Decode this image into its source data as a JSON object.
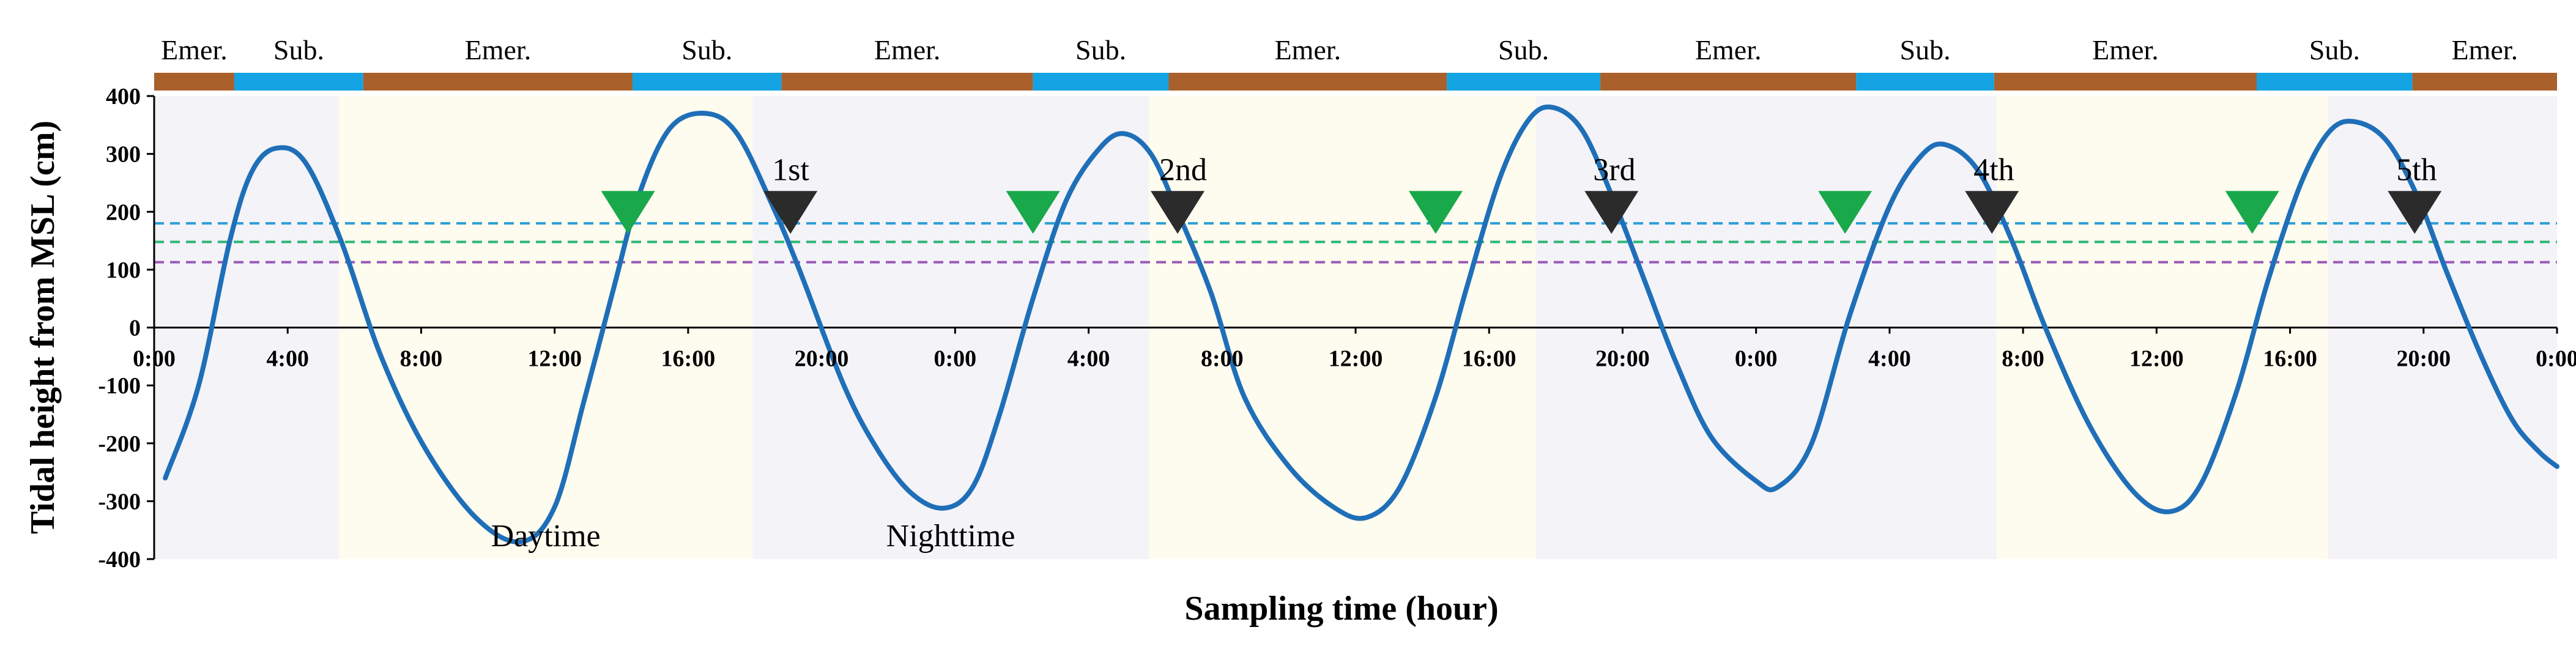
{
  "chart_data": {
    "type": "line",
    "title": "",
    "xlabel": "Sampling time (hour)",
    "ylabel": "Tidal height from MSL (cm)",
    "x_unit": "hour",
    "xlim": [
      0,
      108
    ],
    "ylim": [
      -400,
      400
    ],
    "yticks": [
      {
        "value": 400,
        "label": "400"
      },
      {
        "value": 300,
        "label": "300"
      },
      {
        "value": 200,
        "label": "200"
      },
      {
        "value": 100,
        "label": "100"
      },
      {
        "value": 0,
        "label": "0"
      },
      {
        "value": -100,
        "label": "-100"
      },
      {
        "value": -200,
        "label": "-200"
      },
      {
        "value": -300,
        "label": "-300"
      },
      {
        "value": -400,
        "label": "-400"
      }
    ],
    "xticks": [
      {
        "value": 0,
        "label": "0:00"
      },
      {
        "value": 6,
        "label": "4:00"
      },
      {
        "value": 12,
        "label": "8:00"
      },
      {
        "value": 18,
        "label": "12:00"
      },
      {
        "value": 24,
        "label": "16:00"
      },
      {
        "value": 30,
        "label": "20:00"
      },
      {
        "value": 36,
        "label": "0:00"
      },
      {
        "value": 42,
        "label": "4:00"
      },
      {
        "value": 48,
        "label": "8:00"
      },
      {
        "value": 54,
        "label": "12:00"
      },
      {
        "value": 60,
        "label": "16:00"
      },
      {
        "value": 66,
        "label": "20:00"
      },
      {
        "value": 72,
        "label": "0:00"
      },
      {
        "value": 78,
        "label": "4:00"
      },
      {
        "value": 84,
        "label": "8:00"
      },
      {
        "value": 90,
        "label": "12:00"
      },
      {
        "value": 96,
        "label": "16:00"
      },
      {
        "value": 102,
        "label": "20:00"
      },
      {
        "value": 108,
        "label": "0:00"
      }
    ],
    "series": [
      {
        "name": "",
        "color": "#1f6fb8",
        "points": [
          [
            0.5,
            -260
          ],
          [
            2.0,
            -100
          ],
          [
            3.4,
            150
          ],
          [
            4.4,
            270
          ],
          [
            5.5,
            310
          ],
          [
            6.8,
            285
          ],
          [
            8.4,
            150
          ],
          [
            10.2,
            -50
          ],
          [
            12.2,
            -210
          ],
          [
            14.5,
            -330
          ],
          [
            16.5,
            -370
          ],
          [
            18.0,
            -310
          ],
          [
            19.3,
            -130
          ],
          [
            20.6,
            60
          ],
          [
            21.8,
            230
          ],
          [
            23.2,
            345
          ],
          [
            24.8,
            370
          ],
          [
            26.2,
            335
          ],
          [
            27.8,
            210
          ],
          [
            29.0,
            100
          ],
          [
            31.0,
            -100
          ],
          [
            32.5,
            -210
          ],
          [
            34.0,
            -285
          ],
          [
            35.5,
            -312
          ],
          [
            36.8,
            -275
          ],
          [
            38.0,
            -150
          ],
          [
            39.5,
            50
          ],
          [
            41.0,
            220
          ],
          [
            42.5,
            310
          ],
          [
            43.6,
            335
          ],
          [
            44.8,
            300
          ],
          [
            46.0,
            200
          ],
          [
            47.5,
            60
          ],
          [
            49.0,
            -120
          ],
          [
            51.0,
            -240
          ],
          [
            53.0,
            -310
          ],
          [
            54.5,
            -328
          ],
          [
            56.0,
            -275
          ],
          [
            57.6,
            -120
          ],
          [
            59.0,
            70
          ],
          [
            60.5,
            260
          ],
          [
            61.8,
            360
          ],
          [
            62.9,
            380
          ],
          [
            64.2,
            340
          ],
          [
            65.6,
            220
          ],
          [
            67.0,
            80
          ],
          [
            68.4,
            -60
          ],
          [
            70.0,
            -190
          ],
          [
            72.0,
            -265
          ],
          [
            73.0,
            -275
          ],
          [
            74.5,
            -200
          ],
          [
            76.2,
            20
          ],
          [
            78.0,
            210
          ],
          [
            79.5,
            300
          ],
          [
            80.6,
            315
          ],
          [
            82.0,
            270
          ],
          [
            83.5,
            150
          ],
          [
            85.0,
            0
          ],
          [
            87.0,
            -170
          ],
          [
            89.0,
            -285
          ],
          [
            90.6,
            -318
          ],
          [
            92.0,
            -270
          ],
          [
            93.6,
            -110
          ],
          [
            95.0,
            80
          ],
          [
            96.5,
            250
          ],
          [
            97.8,
            340
          ],
          [
            99.0,
            355
          ],
          [
            100.4,
            320
          ],
          [
            101.8,
            220
          ],
          [
            103.0,
            100
          ],
          [
            104.6,
            -50
          ],
          [
            106.0,
            -160
          ],
          [
            107.2,
            -215
          ],
          [
            108.0,
            -240
          ]
        ]
      }
    ],
    "reference_lines": [
      {
        "y": 180,
        "color": "#2a9fd6",
        "style": "dashed"
      },
      {
        "y": 148,
        "color": "#2bb673",
        "style": "dashed"
      },
      {
        "y": 113,
        "color": "#9b59b6",
        "style": "dashed"
      }
    ],
    "day_night_bands": [
      {
        "x0": 0,
        "x1": 8.3,
        "kind": "night",
        "label": ""
      },
      {
        "x0": 8.3,
        "x1": 26.9,
        "kind": "day",
        "label": "Daytime"
      },
      {
        "x0": 26.9,
        "x1": 44.7,
        "kind": "night",
        "label": "Nighttime"
      },
      {
        "x0": 44.7,
        "x1": 62.1,
        "kind": "day",
        "label": ""
      },
      {
        "x0": 62.1,
        "x1": 82.8,
        "kind": "night",
        "label": ""
      },
      {
        "x0": 82.8,
        "x1": 97.7,
        "kind": "day",
        "label": ""
      },
      {
        "x0": 97.7,
        "x1": 108,
        "kind": "night",
        "label": ""
      }
    ],
    "band_colors": {
      "day": "#fefbef",
      "night": "#f4f3f7"
    },
    "submersion_bar": [
      {
        "x0": 0,
        "x1": 3.6,
        "state": "emer",
        "label": "Emer."
      },
      {
        "x0": 3.6,
        "x1": 9.4,
        "state": "sub",
        "label": "Sub."
      },
      {
        "x0": 9.4,
        "x1": 21.5,
        "state": "emer",
        "label": "Emer."
      },
      {
        "x0": 21.5,
        "x1": 28.2,
        "state": "sub",
        "label": "Sub."
      },
      {
        "x0": 28.2,
        "x1": 39.5,
        "state": "emer",
        "label": "Emer."
      },
      {
        "x0": 39.5,
        "x1": 45.6,
        "state": "sub",
        "label": "Sub."
      },
      {
        "x0": 45.6,
        "x1": 58.1,
        "state": "emer",
        "label": "Emer."
      },
      {
        "x0": 58.1,
        "x1": 65.0,
        "state": "sub",
        "label": "Sub."
      },
      {
        "x0": 65.0,
        "x1": 76.5,
        "state": "emer",
        "label": "Emer."
      },
      {
        "x0": 76.5,
        "x1": 82.7,
        "state": "sub",
        "label": "Sub."
      },
      {
        "x0": 82.7,
        "x1": 94.5,
        "state": "emer",
        "label": "Emer."
      },
      {
        "x0": 94.5,
        "x1": 101.5,
        "state": "sub",
        "label": "Sub."
      },
      {
        "x0": 101.5,
        "x1": 108,
        "state": "emer",
        "label": "Emer."
      }
    ],
    "bar_colors": {
      "emer": "#a9602a",
      "sub": "#14a3e3"
    },
    "markers": [
      {
        "x": 21.3,
        "color": "#19a84a",
        "label": ""
      },
      {
        "x": 28.6,
        "color": "#2b2b2b",
        "label": "1st"
      },
      {
        "x": 39.5,
        "color": "#19a84a",
        "label": ""
      },
      {
        "x": 46.0,
        "color": "#2b2b2b",
        "label": "2nd"
      },
      {
        "x": 57.6,
        "color": "#19a84a",
        "label": ""
      },
      {
        "x": 65.5,
        "color": "#2b2b2b",
        "label": "3rd"
      },
      {
        "x": 76.0,
        "color": "#19a84a",
        "label": ""
      },
      {
        "x": 82.6,
        "color": "#2b2b2b",
        "label": "4th"
      },
      {
        "x": 94.3,
        "color": "#19a84a",
        "label": ""
      },
      {
        "x": 101.6,
        "color": "#2b2b2b",
        "label": "5th"
      }
    ],
    "marker_y": 200
  }
}
